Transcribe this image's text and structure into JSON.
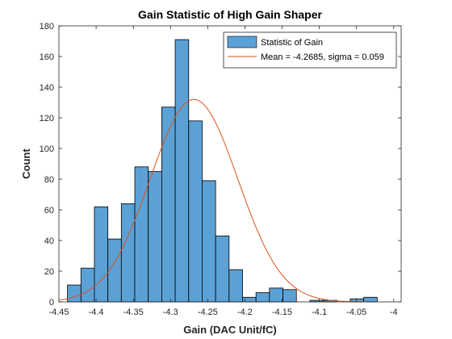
{
  "chart_data": {
    "type": "bar",
    "title": "Gain Statistic of High Gain Shaper",
    "xlabel": "Gain (DAC Unit/fC)",
    "ylabel": "Count",
    "xlim": [
      -4.45,
      -3.99
    ],
    "ylim": [
      0,
      180
    ],
    "xticks": [
      -4.45,
      -4.4,
      -4.35,
      -4.3,
      -4.25,
      -4.2,
      -4.15,
      -4.1,
      -4.05,
      -4
    ],
    "xtick_labels": [
      "-4.45",
      "-4.4",
      "-4.35",
      "-4.3",
      "-4.25",
      "-4.2",
      "-4.15",
      "-4.1",
      "-4.05",
      "-4"
    ],
    "yticks": [
      0,
      20,
      40,
      60,
      80,
      100,
      120,
      140,
      160,
      180
    ],
    "ytick_labels": [
      "0",
      "20",
      "40",
      "60",
      "80",
      "100",
      "120",
      "140",
      "160",
      "180"
    ],
    "grid": false,
    "legend_position": "top-right",
    "histogram": {
      "name": "Statistic of Gain",
      "bin_edges": [
        -4.4385,
        -4.4204,
        -4.4023,
        -4.3842,
        -4.3661,
        -4.348,
        -4.3299,
        -4.3118,
        -4.2937,
        -4.2756,
        -4.2575,
        -4.2394,
        -4.2213,
        -4.2032,
        -4.1851,
        -4.167,
        -4.1489,
        -4.1308,
        -4.1127,
        -4.0946,
        -4.0765,
        -4.0584,
        -4.0403,
        -4.0222,
        -4.0041
      ],
      "counts": [
        11,
        22,
        62,
        41,
        64,
        88,
        85,
        127,
        171,
        118,
        79,
        43,
        21,
        3,
        6,
        9,
        8,
        0,
        1,
        1,
        0,
        2,
        3,
        0
      ],
      "color": "#5ba1d6",
      "edge_color": "#000000"
    },
    "fit": {
      "name": "Mean = -4.2685, sigma = 0.059",
      "type": "gaussian",
      "mean": -4.2685,
      "sigma": 0.059,
      "peak": 132,
      "color": "#d95319"
    }
  }
}
